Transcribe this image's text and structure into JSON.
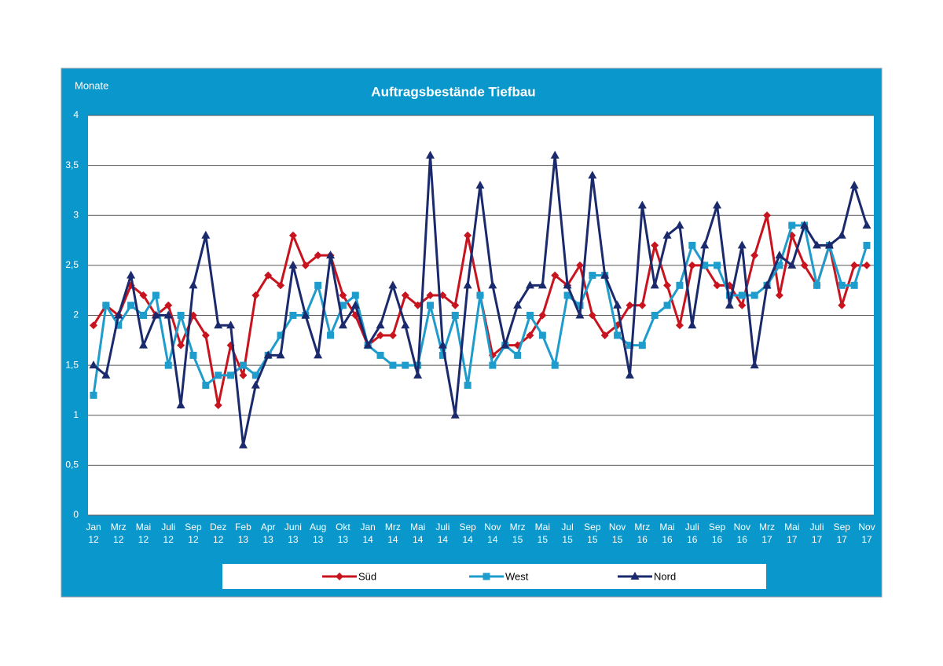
{
  "chart_data": {
    "type": "line",
    "title": "Auftragsbestände Tiefbau",
    "y_axis_label": "Monate",
    "categories": [
      "Jan\n12",
      null,
      "Mrz\n12",
      null,
      "Mai\n12",
      null,
      "Juli\n12",
      null,
      "Sep\n12",
      null,
      "Dez\n12",
      null,
      "Feb\n13",
      null,
      "Apr\n13",
      null,
      "Juni\n13",
      null,
      "Aug\n13",
      null,
      "Okt\n13",
      null,
      "Jan\n14",
      null,
      "Mrz\n14",
      null,
      "Mai\n14",
      null,
      "Juli\n14",
      null,
      "Sep\n14",
      null,
      "Nov\n14",
      null,
      "Mrz\n15",
      null,
      "Mai\n15",
      null,
      "Jul\n15",
      null,
      "Sep\n15",
      null,
      "Nov\n15",
      null,
      "Mrz\n16",
      null,
      "Mai\n16",
      null,
      "Juli\n16",
      null,
      "Sep\n16",
      null,
      "Nov\n16",
      null,
      "Mrz\n17",
      null,
      "Mai\n17",
      null,
      "Juli\n17",
      null,
      "Sep\n17",
      null,
      "Nov\n17"
    ],
    "series": [
      {
        "name": "Süd",
        "color": "#c8141e",
        "marker": "diamond",
        "values": [
          1.9,
          2.1,
          2.0,
          2.3,
          2.2,
          2.0,
          2.1,
          1.7,
          2.0,
          1.8,
          1.1,
          1.7,
          1.4,
          2.2,
          2.4,
          2.3,
          2.8,
          2.5,
          2.6,
          2.6,
          2.2,
          2.0,
          1.7,
          1.8,
          1.8,
          2.2,
          2.1,
          2.2,
          2.2,
          2.1,
          2.8,
          2.2,
          1.6,
          1.7,
          1.7,
          1.8,
          2.0,
          2.4,
          2.3,
          2.5,
          2.0,
          1.8,
          1.9,
          2.1,
          2.1,
          2.7,
          2.3,
          1.9,
          2.5,
          2.5,
          2.3,
          2.3,
          2.1,
          2.6,
          3.0,
          2.2,
          2.8,
          2.5,
          2.3,
          2.7,
          2.1,
          2.5,
          2.5
        ]
      },
      {
        "name": "West",
        "color": "#1e9ccc",
        "marker": "square",
        "values": [
          1.2,
          2.1,
          1.9,
          2.1,
          2.0,
          2.2,
          1.5,
          2.0,
          1.6,
          1.3,
          1.4,
          1.4,
          1.5,
          1.4,
          1.6,
          1.8,
          2.0,
          2.0,
          2.3,
          1.8,
          2.1,
          2.2,
          1.7,
          1.6,
          1.5,
          1.5,
          1.5,
          2.1,
          1.6,
          2.0,
          1.3,
          2.2,
          1.5,
          1.7,
          1.6,
          2.0,
          1.8,
          1.5,
          2.2,
          2.1,
          2.4,
          2.4,
          1.8,
          1.7,
          1.7,
          2.0,
          2.1,
          2.3,
          2.7,
          2.5,
          2.5,
          2.2,
          2.2,
          2.2,
          2.3,
          2.5,
          2.9,
          2.9,
          2.3,
          2.7,
          2.3,
          2.3,
          2.7
        ]
      },
      {
        "name": "Nord",
        "color": "#1a2a6c",
        "marker": "triangle",
        "values": [
          1.5,
          1.4,
          2.0,
          2.4,
          1.7,
          2.0,
          2.0,
          1.1,
          2.3,
          2.8,
          1.9,
          1.9,
          0.7,
          1.3,
          1.6,
          1.6,
          2.5,
          2.0,
          1.6,
          2.6,
          1.9,
          2.1,
          1.7,
          1.9,
          2.3,
          1.9,
          1.4,
          3.6,
          1.7,
          1.0,
          2.3,
          3.3,
          2.3,
          1.7,
          2.1,
          2.3,
          2.3,
          3.6,
          2.3,
          2.0,
          3.4,
          2.4,
          2.1,
          1.4,
          3.1,
          2.3,
          2.8,
          2.9,
          1.9,
          2.7,
          3.1,
          2.1,
          2.7,
          1.5,
          2.3,
          2.6,
          2.5,
          2.9,
          2.7,
          2.7,
          2.8,
          3.3,
          2.9
        ]
      }
    ],
    "ylim": [
      0,
      4
    ],
    "yticks": [
      0,
      {
        "value": 0.5,
        "label": "0,5"
      },
      1,
      {
        "value": 1.5,
        "label": "1,5"
      },
      2,
      {
        "value": 2.5,
        "label": "2,5"
      },
      3,
      {
        "value": 3.5,
        "label": "3,5"
      },
      4
    ],
    "grid": true,
    "legend": "bottom",
    "frame_color": "#0a98cc"
  }
}
